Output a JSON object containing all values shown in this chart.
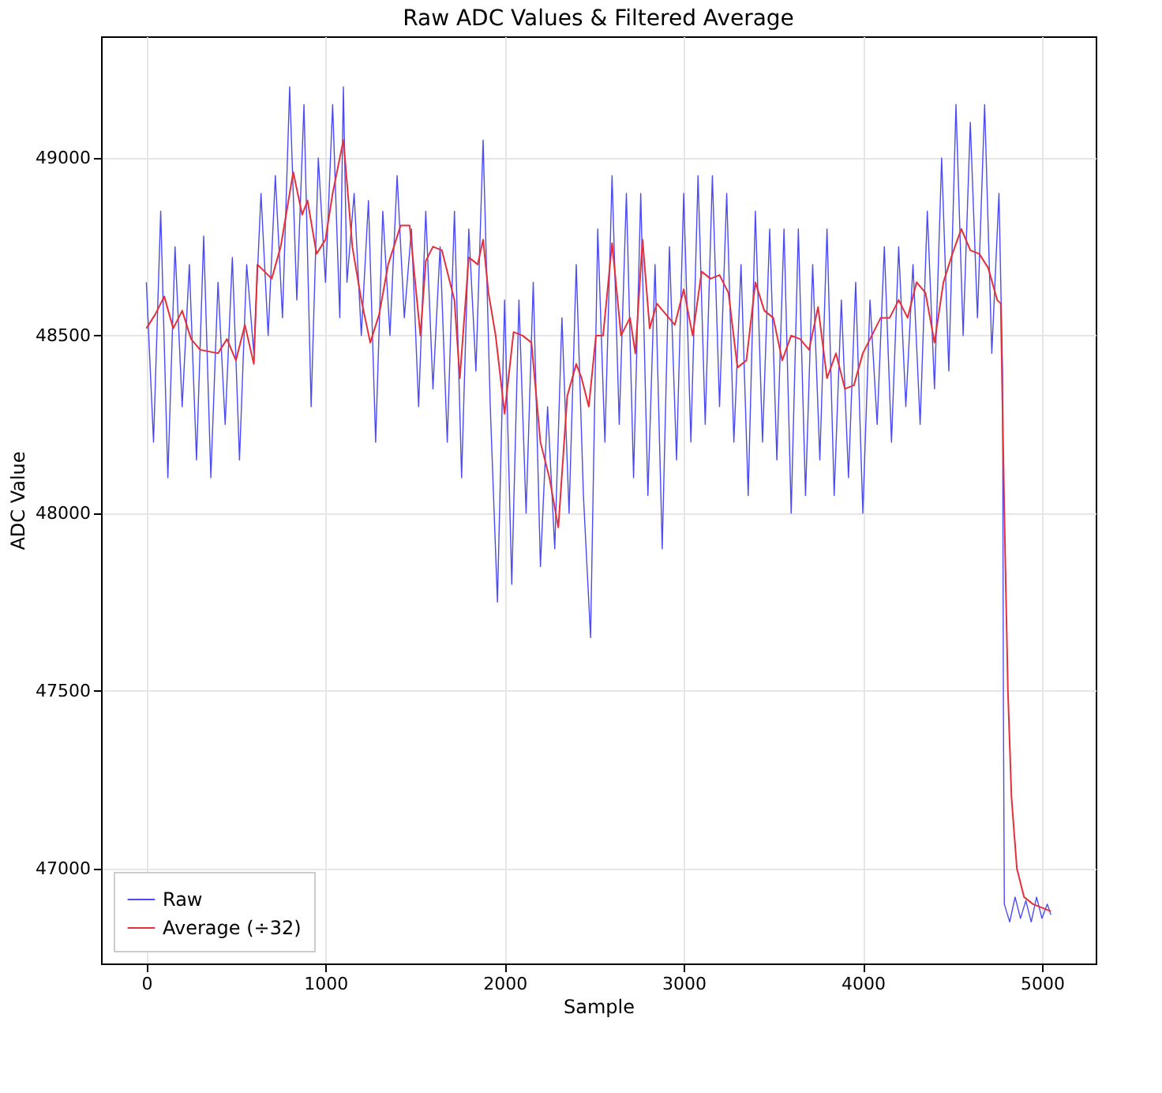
{
  "chart_data": {
    "type": "line",
    "title": "Raw ADC Values & Filtered Average",
    "xlabel": "Sample",
    "ylabel": "ADC Value",
    "xlim": [
      -253,
      5300
    ],
    "ylim": [
      46733,
      49342
    ],
    "xticks": [
      0,
      1000,
      2000,
      3000,
      4000,
      5000
    ],
    "yticks": [
      47000,
      47500,
      48000,
      48500,
      49000
    ],
    "grid": true,
    "legend": "bottom left",
    "series": [
      {
        "name": "Raw",
        "color": "#4a4af6",
        "x": [
          0,
          40,
          80,
          120,
          160,
          200,
          240,
          280,
          320,
          360,
          400,
          440,
          480,
          520,
          560,
          600,
          640,
          680,
          720,
          760,
          800,
          840,
          880,
          920,
          960,
          1000,
          1040,
          1080,
          1100,
          1120,
          1160,
          1200,
          1240,
          1280,
          1320,
          1360,
          1400,
          1440,
          1480,
          1520,
          1560,
          1600,
          1640,
          1680,
          1720,
          1760,
          1800,
          1840,
          1880,
          1920,
          1960,
          2000,
          2040,
          2080,
          2120,
          2160,
          2200,
          2240,
          2280,
          2320,
          2360,
          2400,
          2440,
          2480,
          2520,
          2560,
          2600,
          2640,
          2680,
          2720,
          2760,
          2800,
          2840,
          2880,
          2920,
          2960,
          3000,
          3040,
          3080,
          3120,
          3160,
          3200,
          3240,
          3280,
          3320,
          3360,
          3400,
          3440,
          3480,
          3520,
          3560,
          3600,
          3640,
          3680,
          3720,
          3760,
          3800,
          3840,
          3880,
          3920,
          3960,
          4000,
          4040,
          4080,
          4120,
          4160,
          4200,
          4240,
          4280,
          4320,
          4360,
          4400,
          4440,
          4480,
          4520,
          4560,
          4600,
          4640,
          4680,
          4720,
          4760,
          4780,
          4785,
          4790,
          4820,
          4850,
          4880,
          4910,
          4940,
          4970,
          5000,
          5030,
          5050
        ],
        "values": [
          48650,
          48200,
          48850,
          48100,
          48750,
          48300,
          48700,
          48150,
          48780,
          48100,
          48650,
          48250,
          48720,
          48150,
          48700,
          48450,
          48900,
          48500,
          48950,
          48550,
          49200,
          48600,
          49150,
          48300,
          49000,
          48650,
          49150,
          48550,
          49200,
          48650,
          48900,
          48500,
          48880,
          48200,
          48850,
          48500,
          48950,
          48550,
          48800,
          48300,
          48850,
          48350,
          48750,
          48200,
          48850,
          48100,
          48800,
          48400,
          49050,
          48300,
          47750,
          48600,
          47800,
          48600,
          48000,
          48650,
          47850,
          48300,
          47900,
          48550,
          48000,
          48700,
          48050,
          47650,
          48800,
          48200,
          48950,
          48250,
          48900,
          48100,
          48900,
          48050,
          48700,
          47900,
          48750,
          48150,
          48900,
          48200,
          48950,
          48250,
          48950,
          48300,
          48900,
          48200,
          48700,
          48050,
          48850,
          48200,
          48800,
          48150,
          48800,
          48000,
          48800,
          48050,
          48700,
          48150,
          48800,
          48050,
          48600,
          48100,
          48650,
          48000,
          48600,
          48250,
          48750,
          48200,
          48750,
          48300,
          48700,
          48250,
          48850,
          48350,
          49000,
          48400,
          49150,
          48500,
          49100,
          48550,
          49150,
          48450,
          48900,
          48400,
          47430,
          46900,
          46850,
          46920,
          46860,
          46910,
          46850,
          46920,
          46860,
          46900,
          46870
        ]
      },
      {
        "name": "Average (÷32)",
        "color": "#e3303c",
        "x": [
          0,
          50,
          100,
          150,
          200,
          250,
          300,
          400,
          450,
          500,
          550,
          600,
          620,
          660,
          700,
          750,
          820,
          870,
          900,
          950,
          1000,
          1040,
          1100,
          1150,
          1200,
          1250,
          1300,
          1350,
          1420,
          1470,
          1530,
          1560,
          1600,
          1650,
          1720,
          1750,
          1800,
          1850,
          1880,
          1910,
          1950,
          2000,
          2050,
          2100,
          2150,
          2200,
          2250,
          2300,
          2350,
          2400,
          2430,
          2470,
          2510,
          2550,
          2600,
          2650,
          2700,
          2730,
          2770,
          2810,
          2850,
          2900,
          2950,
          3000,
          3050,
          3100,
          3150,
          3200,
          3250,
          3300,
          3350,
          3400,
          3450,
          3500,
          3550,
          3600,
          3650,
          3700,
          3750,
          3800,
          3850,
          3900,
          3950,
          4000,
          4100,
          4150,
          4200,
          4250,
          4300,
          4350,
          4400,
          4450,
          4500,
          4550,
          4600,
          4650,
          4700,
          4750,
          4770,
          4790,
          4810,
          4830,
          4860,
          4900,
          4950,
          5000,
          5050
        ],
        "values": [
          48520,
          48560,
          48610,
          48520,
          48570,
          48490,
          48460,
          48450,
          48490,
          48430,
          48530,
          48420,
          48700,
          48680,
          48660,
          48750,
          48960,
          48840,
          48880,
          48730,
          48770,
          48900,
          49050,
          48750,
          48600,
          48480,
          48560,
          48700,
          48810,
          48810,
          48500,
          48710,
          48750,
          48740,
          48600,
          48380,
          48720,
          48700,
          48770,
          48620,
          48500,
          48280,
          48510,
          48500,
          48480,
          48200,
          48100,
          47960,
          48330,
          48420,
          48380,
          48300,
          48500,
          48500,
          48760,
          48500,
          48550,
          48450,
          48770,
          48520,
          48590,
          48560,
          48530,
          48630,
          48500,
          48680,
          48660,
          48670,
          48620,
          48410,
          48430,
          48650,
          48570,
          48550,
          48430,
          48500,
          48490,
          48460,
          48580,
          48380,
          48450,
          48350,
          48360,
          48450,
          48550,
          48550,
          48600,
          48550,
          48650,
          48620,
          48480,
          48650,
          48730,
          48800,
          48740,
          48730,
          48690,
          48600,
          48590,
          48000,
          47500,
          47200,
          47000,
          46920,
          46900,
          46890,
          46880
        ]
      }
    ]
  }
}
